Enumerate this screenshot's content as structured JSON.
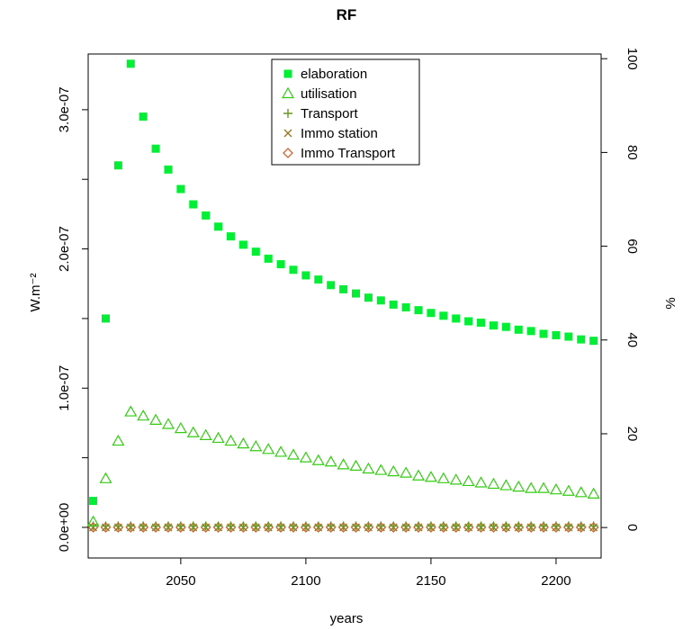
{
  "chart_data": {
    "type": "scatter",
    "title": "RF",
    "xlabel": "years",
    "ylabel": "W.m⁻²",
    "ylabel_right": "%",
    "xlim": [
      2013,
      2218
    ],
    "ylim": [
      -2.2e-08,
      3.4e-07
    ],
    "ylim_right": [
      -6.5,
      101
    ],
    "x_ticks": [
      2050,
      2100,
      2150,
      2200
    ],
    "y_ticks": [
      0,
      1e-07,
      2e-07,
      3e-07
    ],
    "y_tick_labels": [
      "0.0e+00",
      "1.0e-07",
      "2.0e-07",
      "3.0e-07"
    ],
    "y_minor_ticks": [
      5e-08,
      1.5e-07,
      2.5e-07
    ],
    "y_ticks_right": [
      0,
      20,
      40,
      60,
      80,
      100
    ],
    "y_tick_labels_right": [
      "0",
      "20",
      "40",
      "60",
      "80",
      "100"
    ],
    "x": [
      2015,
      2020,
      2025,
      2030,
      2035,
      2040,
      2045,
      2050,
      2055,
      2060,
      2065,
      2070,
      2075,
      2080,
      2085,
      2090,
      2095,
      2100,
      2105,
      2110,
      2115,
      2120,
      2125,
      2130,
      2135,
      2140,
      2145,
      2150,
      2155,
      2160,
      2165,
      2170,
      2175,
      2180,
      2185,
      2190,
      2195,
      2200,
      2205,
      2210,
      2215
    ],
    "legend_position": "top-center",
    "grid": false,
    "series": [
      {
        "name": "elaboration",
        "axis": "left",
        "marker": "filled-square",
        "color": "#00ee33",
        "values": [
          1.9e-08,
          1.5e-07,
          2.6e-07,
          3.33e-07,
          2.95e-07,
          2.72e-07,
          2.57e-07,
          2.43e-07,
          2.32e-07,
          2.24e-07,
          2.16e-07,
          2.09e-07,
          2.03e-07,
          1.98e-07,
          1.93e-07,
          1.89e-07,
          1.85e-07,
          1.81e-07,
          1.78e-07,
          1.74e-07,
          1.71e-07,
          1.68e-07,
          1.65e-07,
          1.63e-07,
          1.6e-07,
          1.58e-07,
          1.56e-07,
          1.54e-07,
          1.52e-07,
          1.5e-07,
          1.48e-07,
          1.47e-07,
          1.45e-07,
          1.44e-07,
          1.42e-07,
          1.41e-07,
          1.39e-07,
          1.38e-07,
          1.37e-07,
          1.35e-07,
          1.34e-07
        ]
      },
      {
        "name": "utilisation",
        "axis": "left",
        "marker": "open-triangle",
        "color": "#33cc11",
        "values": [
          4e-09,
          3.5e-08,
          6.2e-08,
          8.3e-08,
          8e-08,
          7.7e-08,
          7.4e-08,
          7.1e-08,
          6.8e-08,
          6.6e-08,
          6.4e-08,
          6.2e-08,
          6e-08,
          5.8e-08,
          5.6e-08,
          5.4e-08,
          5.2e-08,
          5e-08,
          4.8e-08,
          4.7e-08,
          4.5e-08,
          4.4e-08,
          4.2e-08,
          4.1e-08,
          4e-08,
          3.9e-08,
          3.7e-08,
          3.6e-08,
          3.5e-08,
          3.4e-08,
          3.3e-08,
          3.2e-08,
          3.1e-08,
          3e-08,
          2.9e-08,
          2.8e-08,
          2.8e-08,
          2.7e-08,
          2.6e-08,
          2.5e-08,
          2.4e-08
        ]
      },
      {
        "name": "Transport",
        "axis": "left",
        "marker": "plus",
        "color": "#669922",
        "values": [
          1e-09,
          1e-09,
          1e-09,
          1e-09,
          1e-09,
          1e-09,
          1e-09,
          1e-09,
          1e-09,
          1e-09,
          1e-09,
          1e-09,
          1e-09,
          1e-09,
          1e-09,
          1e-09,
          1e-09,
          1e-09,
          1e-09,
          1e-09,
          1e-09,
          1e-09,
          1e-09,
          1e-09,
          1e-09,
          1e-09,
          1e-09,
          1e-09,
          1e-09,
          1e-09,
          1e-09,
          1e-09,
          1e-09,
          1e-09,
          1e-09,
          1e-09,
          1e-09,
          1e-09,
          1e-09,
          1e-09,
          1e-09
        ]
      },
      {
        "name": "Immo station",
        "axis": "left",
        "marker": "cross",
        "color": "#997722",
        "values": [
          0,
          0,
          0,
          0,
          0,
          0,
          0,
          0,
          0,
          0,
          0,
          0,
          0,
          0,
          0,
          0,
          0,
          0,
          0,
          0,
          0,
          0,
          0,
          0,
          0,
          0,
          0,
          0,
          0,
          0,
          0,
          0,
          0,
          0,
          0,
          0,
          0,
          0,
          0,
          0,
          0
        ]
      },
      {
        "name": "Immo Transport",
        "axis": "left",
        "marker": "open-diamond",
        "color": "#cc6633",
        "values": [
          0,
          0,
          0,
          0,
          0,
          0,
          0,
          0,
          0,
          0,
          0,
          0,
          0,
          0,
          0,
          0,
          0,
          0,
          0,
          0,
          0,
          0,
          0,
          0,
          0,
          0,
          0,
          0,
          0,
          0,
          0,
          0,
          0,
          0,
          0,
          0,
          0,
          0,
          0,
          0,
          0
        ]
      }
    ]
  }
}
